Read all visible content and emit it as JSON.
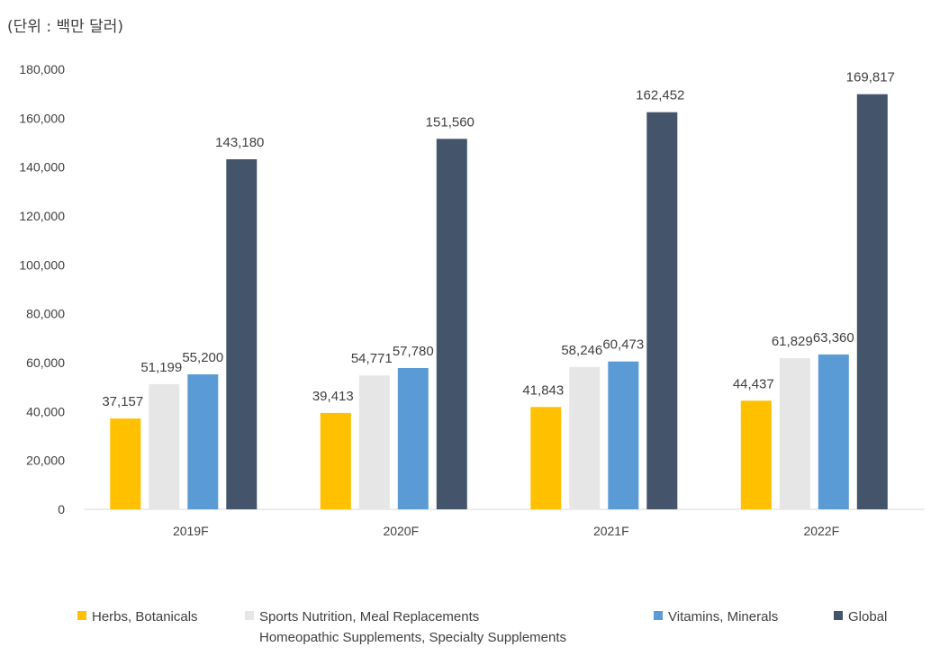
{
  "chart_data": {
    "type": "bar",
    "title": "",
    "unit_label": "(단위 : 백만 달러)",
    "xlabel": "",
    "ylabel": "",
    "categories": [
      "2019F",
      "2020F",
      "2021F",
      "2022F"
    ],
    "ylim": [
      0,
      180000
    ],
    "yticks": [
      0,
      20000,
      40000,
      60000,
      80000,
      100000,
      120000,
      140000,
      160000,
      180000
    ],
    "ytick_labels": [
      "0",
      "20,000",
      "40,000",
      "60,000",
      "80,000",
      "100,000",
      "120,000",
      "140,000",
      "160,000",
      "180,000"
    ],
    "grid": false,
    "legend_position": "bottom",
    "series": [
      {
        "name": "Herbs, Botanicals",
        "color": "#FFC000",
        "values": [
          37157,
          39413,
          41843,
          44437
        ],
        "labels": [
          "37,157",
          "39,413",
          "41,843",
          "44,437"
        ]
      },
      {
        "name": "Sports Nutrition, Meal Replacements",
        "name_line2": "Homeopathic Supplements, Specialty Supplements",
        "color": "#E7E6E6",
        "values": [
          51199,
          54771,
          58246,
          61829
        ],
        "labels": [
          "51,199",
          "54,771",
          "58,246",
          "61,829"
        ]
      },
      {
        "name": "Vitamins, Minerals",
        "color": "#5B9BD5",
        "values": [
          55200,
          57780,
          60473,
          63360
        ],
        "labels": [
          "55,200",
          "57,780",
          "60,473",
          "63,360"
        ]
      },
      {
        "name": "Global",
        "color": "#44546A",
        "values": [
          143180,
          151560,
          162452,
          169817
        ],
        "labels": [
          "143,180",
          "151,560",
          "162,452",
          "169,817"
        ]
      }
    ]
  }
}
